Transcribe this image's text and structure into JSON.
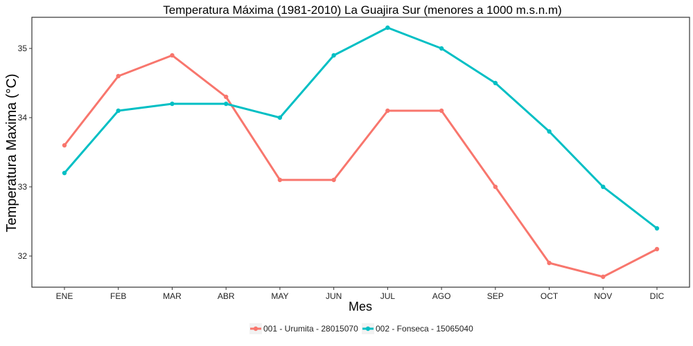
{
  "chart_data": {
    "type": "line",
    "title": "Temperatura Máxima (1981-2010) La Guajira Sur (menores a 1000 m.s.n.m)",
    "xlabel": "Mes",
    "ylabel": "Temperatura Maxima (°C)",
    "categories": [
      "ENE",
      "FEB",
      "MAR",
      "ABR",
      "MAY",
      "JUN",
      "JUL",
      "AGO",
      "SEP",
      "OCT",
      "NOV",
      "DIC"
    ],
    "ylim": [
      31.55,
      35.45
    ],
    "yticks": [
      "32",
      "33",
      "34",
      "35"
    ],
    "grid": false,
    "legend_position": "bottom",
    "series": [
      {
        "name": "001 - Urumita - 28015070",
        "color": "#F8766D",
        "values": [
          33.6,
          34.6,
          34.9,
          34.3,
          33.1,
          33.1,
          34.1,
          34.1,
          33.0,
          31.9,
          31.7,
          32.1
        ]
      },
      {
        "name": "002 - Fonseca - 15065040",
        "color": "#00BFC4",
        "values": [
          33.2,
          34.1,
          34.2,
          34.2,
          34.0,
          34.9,
          35.3,
          35.0,
          34.5,
          33.8,
          33.0,
          32.4
        ]
      }
    ]
  }
}
